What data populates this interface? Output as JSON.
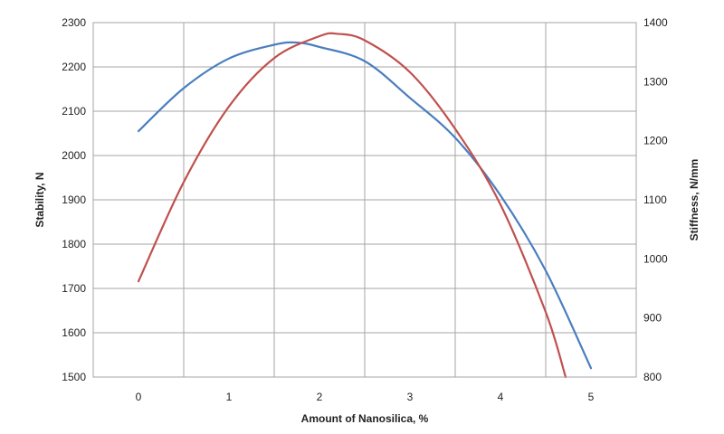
{
  "chart_data": {
    "type": "line",
    "title": "",
    "xlabel": "Amount of Nanosilica, %",
    "ylabel": "Stability, N",
    "y2label": "Stiffness, N/mm",
    "xlim": [
      -0.5,
      5.5
    ],
    "ylim": [
      1500,
      2300
    ],
    "y2lim": [
      800,
      1400
    ],
    "x_ticks": [
      0,
      1,
      2,
      3,
      4,
      5
    ],
    "y_ticks": [
      1500,
      1600,
      1700,
      1800,
      1900,
      2000,
      2100,
      2200,
      2300
    ],
    "y2_ticks": [
      800,
      900,
      1000,
      1100,
      1200,
      1300,
      1400
    ],
    "grid": true,
    "legend": "none",
    "series": [
      {
        "axis": "left",
        "color": "#4a7ebf",
        "x": [
          0,
          0.5,
          1,
          1.5,
          1.75,
          2,
          2.5,
          3,
          3.5,
          4,
          4.5,
          5
        ],
        "y": [
          2055,
          2152,
          2219,
          2250,
          2255,
          2245,
          2213,
          2130,
          2040,
          1910,
          1740,
          1520
        ]
      },
      {
        "axis": "right",
        "color": "#c0504d",
        "x": [
          0,
          0.5,
          1,
          1.5,
          2,
          2.2,
          2.5,
          3,
          3.5,
          4,
          4.5,
          4.72
        ],
        "y": [
          962,
          1130,
          1258,
          1340,
          1377,
          1381,
          1370,
          1316,
          1220,
          1092,
          910,
          800
        ]
      }
    ]
  }
}
